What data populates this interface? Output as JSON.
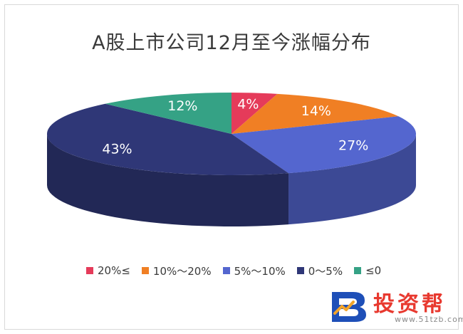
{
  "chart_data": {
    "type": "pie",
    "title": "A股上市公司12月至今涨幅分布",
    "categories": [
      "20%≤",
      "10%～20%",
      "5%～10%",
      "0～5%",
      "≤0"
    ],
    "values": [
      4,
      14,
      27,
      43,
      12
    ],
    "labels": [
      "4%",
      "14%",
      "27%",
      "43%",
      "12%"
    ],
    "colors": [
      "#e53b5a",
      "#f07f24",
      "#5466cf",
      "#2f3777",
      "#35a285"
    ],
    "legend_position": "bottom"
  },
  "watermark": {
    "name": "投资帮",
    "url": "www.51tzb.com"
  }
}
